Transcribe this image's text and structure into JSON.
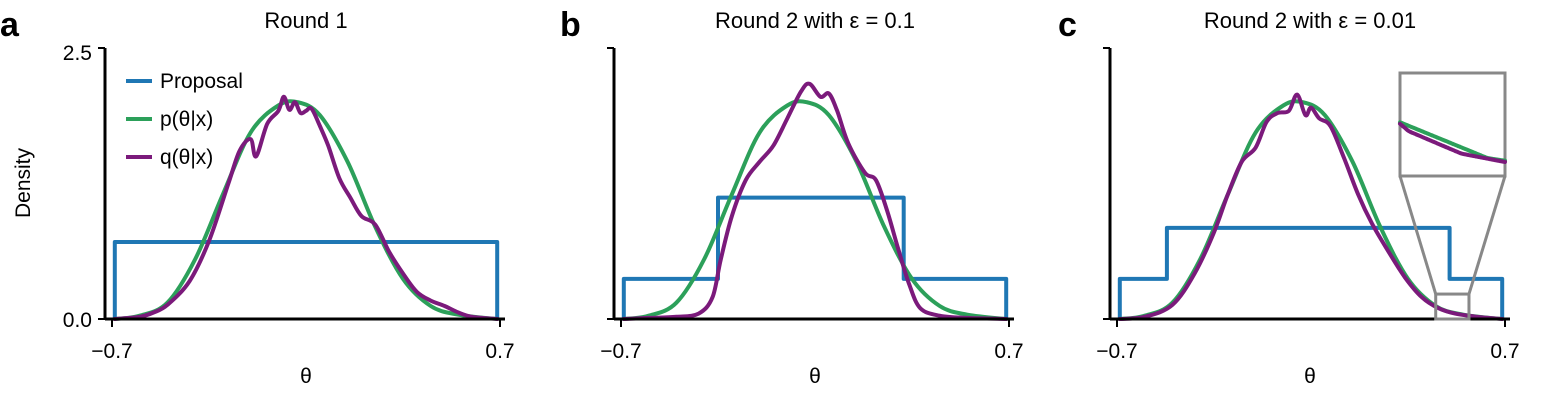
{
  "colors": {
    "proposal": "#1f77b4",
    "posterior": "#2ca05a",
    "estimate": "#7b1a7b",
    "inset": "#888888",
    "axis": "#000000"
  },
  "chart_data": [
    {
      "type": "line",
      "panel_letter": "a",
      "title": "Round 1",
      "xlabel": "θ",
      "ylabel": "Density",
      "xlim": [
        -0.7,
        0.7
      ],
      "ylim": [
        0,
        2.5
      ],
      "xticks": [
        "−0.7",
        "0.7"
      ],
      "yticks": [
        "0.0",
        "2.5"
      ],
      "legend": {
        "position": "top-left",
        "entries": [
          "Proposal",
          "p(θ|x)",
          "q(θ|x)"
        ]
      },
      "series": [
        {
          "name": "Proposal",
          "points": [
            [
              -0.69,
              0
            ],
            [
              -0.69,
              0.71
            ],
            [
              0.69,
              0.71
            ],
            [
              0.69,
              0
            ]
          ]
        },
        {
          "name": "p(θ|x)",
          "points": [
            [
              -0.69,
              0.0
            ],
            [
              -0.6,
              0.03
            ],
            [
              -0.5,
              0.15
            ],
            [
              -0.4,
              0.55
            ],
            [
              -0.3,
              1.15
            ],
            [
              -0.2,
              1.72
            ],
            [
              -0.1,
              1.97
            ],
            [
              -0.03,
              2.0
            ],
            [
              0.05,
              1.88
            ],
            [
              0.15,
              1.45
            ],
            [
              0.25,
              0.85
            ],
            [
              0.35,
              0.37
            ],
            [
              0.45,
              0.12
            ],
            [
              0.55,
              0.04
            ],
            [
              0.69,
              0.0
            ]
          ]
        },
        {
          "name": "q(θ|x)",
          "points": [
            [
              -0.69,
              0.0
            ],
            [
              -0.6,
              0.02
            ],
            [
              -0.55,
              0.06
            ],
            [
              -0.5,
              0.13
            ],
            [
              -0.42,
              0.35
            ],
            [
              -0.35,
              0.72
            ],
            [
              -0.28,
              1.25
            ],
            [
              -0.24,
              1.55
            ],
            [
              -0.2,
              1.66
            ],
            [
              -0.18,
              1.5
            ],
            [
              -0.14,
              1.8
            ],
            [
              -0.1,
              1.92
            ],
            [
              -0.08,
              2.05
            ],
            [
              -0.06,
              1.93
            ],
            [
              -0.04,
              2.0
            ],
            [
              -0.02,
              1.9
            ],
            [
              0.0,
              1.92
            ],
            [
              0.02,
              1.94
            ],
            [
              0.05,
              1.78
            ],
            [
              0.08,
              1.6
            ],
            [
              0.12,
              1.3
            ],
            [
              0.16,
              1.12
            ],
            [
              0.2,
              0.95
            ],
            [
              0.25,
              0.87
            ],
            [
              0.3,
              0.62
            ],
            [
              0.35,
              0.42
            ],
            [
              0.4,
              0.25
            ],
            [
              0.45,
              0.17
            ],
            [
              0.5,
              0.12
            ],
            [
              0.55,
              0.06
            ],
            [
              0.6,
              0.02
            ],
            [
              0.69,
              0.0
            ]
          ]
        }
      ]
    },
    {
      "type": "line",
      "panel_letter": "b",
      "title": "Round 2 with ε = 0.1",
      "xlabel": "θ",
      "xlim": [
        -0.7,
        0.7
      ],
      "ylim": [
        0,
        2.5
      ],
      "xticks": [
        "−0.7",
        "0.7"
      ],
      "series": [
        {
          "name": "Proposal",
          "points": [
            [
              -0.69,
              0
            ],
            [
              -0.69,
              0.37
            ],
            [
              -0.35,
              0.37
            ],
            [
              -0.35,
              1.12
            ],
            [
              0.32,
              1.12
            ],
            [
              0.32,
              0.37
            ],
            [
              0.69,
              0.37
            ],
            [
              0.69,
              0
            ]
          ]
        },
        {
          "name": "p(θ|x)",
          "points": [
            [
              -0.69,
              0.0
            ],
            [
              -0.6,
              0.03
            ],
            [
              -0.5,
              0.15
            ],
            [
              -0.4,
              0.55
            ],
            [
              -0.3,
              1.15
            ],
            [
              -0.2,
              1.72
            ],
            [
              -0.1,
              1.97
            ],
            [
              -0.03,
              2.0
            ],
            [
              0.05,
              1.88
            ],
            [
              0.15,
              1.45
            ],
            [
              0.25,
              0.85
            ],
            [
              0.35,
              0.37
            ],
            [
              0.45,
              0.12
            ],
            [
              0.55,
              0.04
            ],
            [
              0.69,
              0.0
            ]
          ]
        },
        {
          "name": "q(θ|x)",
          "points": [
            [
              -0.69,
              0.0
            ],
            [
              -0.6,
              0.01
            ],
            [
              -0.5,
              0.02
            ],
            [
              -0.42,
              0.05
            ],
            [
              -0.37,
              0.2
            ],
            [
              -0.34,
              0.55
            ],
            [
              -0.3,
              0.95
            ],
            [
              -0.25,
              1.28
            ],
            [
              -0.2,
              1.45
            ],
            [
              -0.15,
              1.6
            ],
            [
              -0.1,
              1.85
            ],
            [
              -0.05,
              2.1
            ],
            [
              -0.02,
              2.17
            ],
            [
              0.02,
              2.05
            ],
            [
              0.05,
              2.08
            ],
            [
              0.08,
              1.92
            ],
            [
              0.12,
              1.62
            ],
            [
              0.18,
              1.35
            ],
            [
              0.22,
              1.28
            ],
            [
              0.26,
              1.0
            ],
            [
              0.3,
              0.65
            ],
            [
              0.34,
              0.32
            ],
            [
              0.38,
              0.1
            ],
            [
              0.45,
              0.03
            ],
            [
              0.55,
              0.01
            ],
            [
              0.69,
              0.0
            ]
          ]
        }
      ]
    },
    {
      "type": "line",
      "panel_letter": "c",
      "title": "Round 2 with ε = 0.01",
      "xlabel": "θ",
      "xlim": [
        -0.7,
        0.7
      ],
      "ylim": [
        0,
        2.5
      ],
      "xticks": [
        "−0.7",
        "0.7"
      ],
      "series": [
        {
          "name": "Proposal",
          "points": [
            [
              -0.69,
              0
            ],
            [
              -0.69,
              0.37
            ],
            [
              -0.52,
              0.37
            ],
            [
              -0.52,
              0.84
            ],
            [
              0.5,
              0.84
            ],
            [
              0.5,
              0.37
            ],
            [
              0.69,
              0.37
            ],
            [
              0.69,
              0
            ]
          ]
        },
        {
          "name": "p(θ|x)",
          "points": [
            [
              -0.69,
              0.0
            ],
            [
              -0.6,
              0.03
            ],
            [
              -0.5,
              0.15
            ],
            [
              -0.4,
              0.55
            ],
            [
              -0.3,
              1.15
            ],
            [
              -0.2,
              1.72
            ],
            [
              -0.1,
              1.97
            ],
            [
              -0.03,
              2.0
            ],
            [
              0.05,
              1.88
            ],
            [
              0.15,
              1.45
            ],
            [
              0.25,
              0.85
            ],
            [
              0.35,
              0.37
            ],
            [
              0.45,
              0.12
            ],
            [
              0.55,
              0.04
            ],
            [
              0.69,
              0.0
            ]
          ]
        },
        {
          "name": "q(θ|x)",
          "points": [
            [
              -0.69,
              0.0
            ],
            [
              -0.6,
              0.02
            ],
            [
              -0.5,
              0.13
            ],
            [
              -0.42,
              0.42
            ],
            [
              -0.35,
              0.8
            ],
            [
              -0.3,
              1.15
            ],
            [
              -0.25,
              1.45
            ],
            [
              -0.2,
              1.58
            ],
            [
              -0.16,
              1.82
            ],
            [
              -0.12,
              1.9
            ],
            [
              -0.08,
              1.92
            ],
            [
              -0.05,
              2.07
            ],
            [
              -0.02,
              1.88
            ],
            [
              0.0,
              1.95
            ],
            [
              0.03,
              1.85
            ],
            [
              0.07,
              1.78
            ],
            [
              0.12,
              1.48
            ],
            [
              0.17,
              1.15
            ],
            [
              0.22,
              0.88
            ],
            [
              0.28,
              0.62
            ],
            [
              0.34,
              0.38
            ],
            [
              0.4,
              0.2
            ],
            [
              0.46,
              0.1
            ],
            [
              0.52,
              0.05
            ],
            [
              0.6,
              0.02
            ],
            [
              0.69,
              0.0
            ]
          ]
        }
      ],
      "inset": {
        "xlim": [
          0.45,
          0.57
        ],
        "ylim": [
          0.0,
          0.23
        ]
      }
    }
  ]
}
